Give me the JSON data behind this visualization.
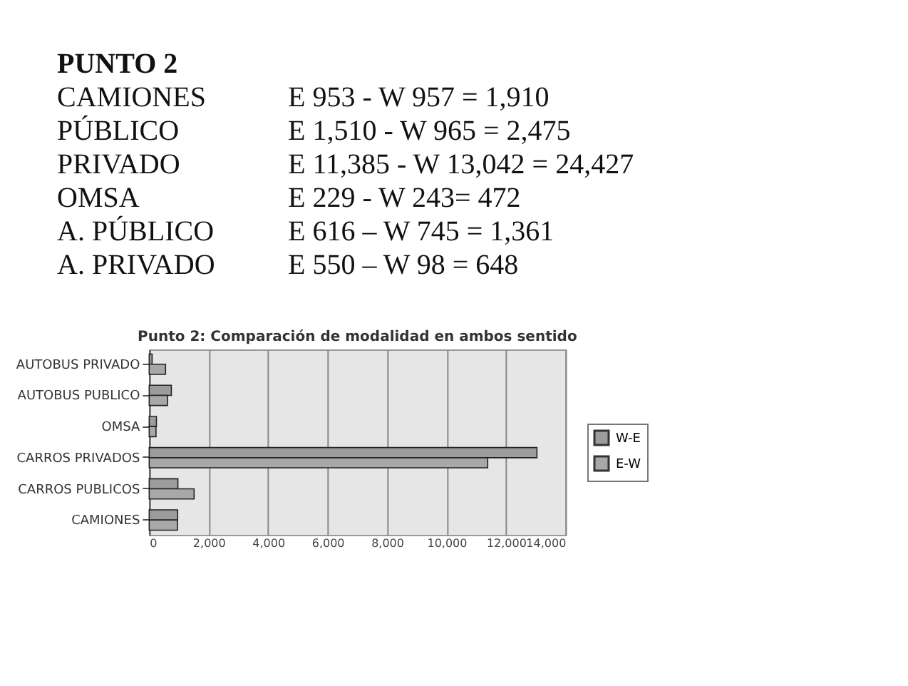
{
  "chart_data": {
    "type": "bar",
    "orientation": "horizontal",
    "title": "Punto 2: Comparación de modalidad en ambos sentido",
    "categories": [
      "AUTOBUS PRIVADO",
      "AUTOBUS PUBLICO",
      "OMSA",
      "CARROS PRIVADOS",
      "CARROS PUBLICOS",
      "CAMIONES"
    ],
    "series": [
      {
        "name": "W-E",
        "color": "#9c9c9c",
        "values": [
          98,
          745,
          243,
          13042,
          965,
          957
        ]
      },
      {
        "name": "E-W",
        "color": "#a8a8a8",
        "values": [
          550,
          616,
          229,
          11385,
          1510,
          953
        ]
      }
    ],
    "xlim": [
      0,
      14000
    ],
    "xticks": [
      {
        "value": 0,
        "label": "0"
      },
      {
        "value": 2000,
        "label": "2,000"
      },
      {
        "value": 4000,
        "label": "4,000"
      },
      {
        "value": 6000,
        "label": "6,000"
      },
      {
        "value": 8000,
        "label": "8,000"
      },
      {
        "value": 10000,
        "label": "10,000"
      },
      {
        "value": 12000,
        "label": "12,000"
      },
      {
        "value": 14000,
        "label": "14,000"
      }
    ],
    "grid": "x",
    "legend": "right",
    "annotations": [
      "PUNTO 2",
      "CAMIONES",
      "E 953  - W 957 = 1,910",
      "PÚBLICO",
      "E 1,510            - W 965 = 2,475",
      "PRIVADO",
      "E 11,385 - W 13,042 = 24,427",
      "OMSA",
      "E 229 -             W 243= 472",
      "A. PÚBLICO",
      "E 616 – W 745 = 1,361",
      "A. PRIVADO",
      "E 550 – W 98 = 648"
    ]
  }
}
